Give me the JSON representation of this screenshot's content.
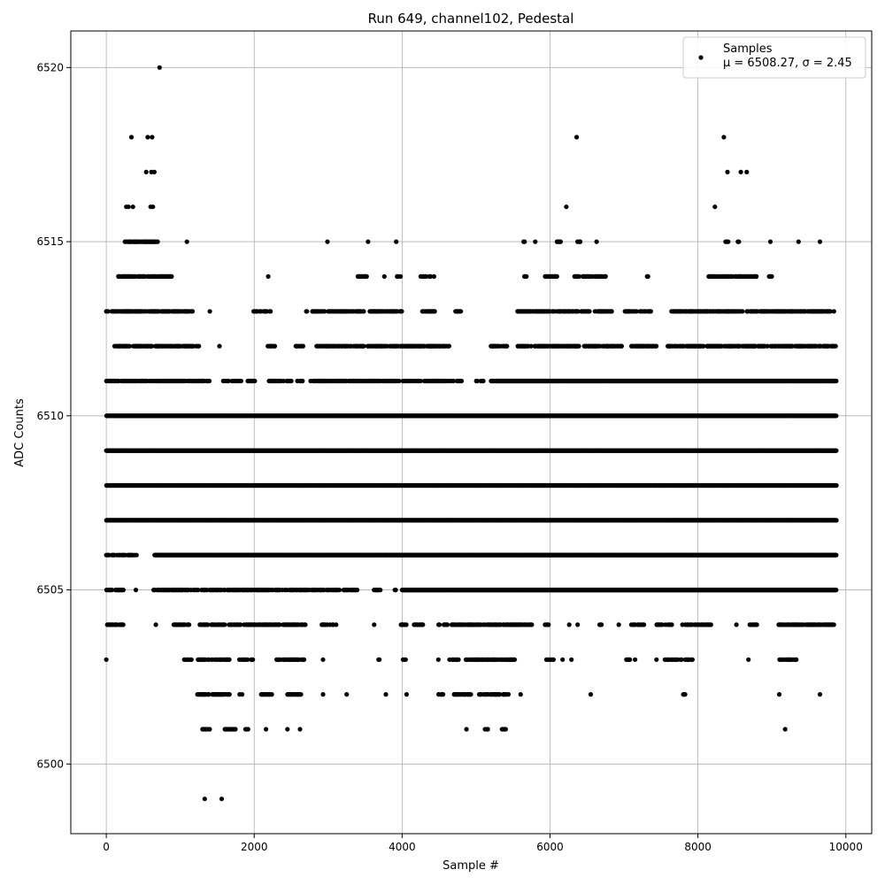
{
  "chart_data": {
    "type": "scatter",
    "title": "Run 649, channel102, Pedestal",
    "xlabel": "Sample #",
    "ylabel": "ADC Counts",
    "xlim": [
      -480,
      10350
    ],
    "ylim": [
      6498.0,
      6521.05
    ],
    "xticks": [
      0,
      2000,
      4000,
      6000,
      8000,
      10000
    ],
    "yticks": [
      6500,
      6505,
      6510,
      6515,
      6520
    ],
    "grid": true,
    "legend_position": "top-right",
    "legend": {
      "label": "Samples",
      "stats": "μ = 6508.27, σ = 2.45"
    },
    "marker_color": "#000000",
    "series": [
      {
        "name": "Samples",
        "n_samples": 9856,
        "mean": 6508.27,
        "sigma": 2.45,
        "outliers": [
          [
            720,
            6520
          ],
          [
            340,
            6518
          ],
          [
            560,
            6518
          ],
          [
            620,
            6518
          ],
          [
            6360,
            6518
          ],
          [
            8350,
            6518
          ],
          [
            540,
            6517
          ],
          [
            610,
            6517
          ],
          [
            650,
            6517
          ],
          [
            8400,
            6517
          ],
          [
            8580,
            6517
          ],
          [
            8660,
            6517
          ],
          [
            270,
            6516
          ],
          [
            300,
            6516
          ],
          [
            360,
            6516
          ],
          [
            600,
            6516
          ],
          [
            630,
            6516
          ],
          [
            6220,
            6516
          ],
          [
            8230,
            6516
          ],
          [
            1330,
            6499
          ],
          [
            1560,
            6499
          ],
          [
            5150,
            6501
          ],
          [
            1340,
            6501
          ],
          [
            9180,
            6501
          ],
          [
            4870,
            6501
          ]
        ],
        "level_ranges": [
          {
            "y": 6515,
            "x": [
              [
                250,
                700
              ],
              [
                1090,
                1090
              ],
              [
                2990,
                2990
              ],
              [
                3540,
                3540
              ],
              [
                3920,
                3920
              ],
              [
                5640,
                5660
              ],
              [
                5800,
                5800
              ],
              [
                6080,
                6140
              ],
              [
                6370,
                6410
              ],
              [
                6630,
                6630
              ],
              [
                8360,
                8420
              ],
              [
                8540,
                8560
              ],
              [
                8980,
                8980
              ],
              [
                9360,
                9360
              ],
              [
                9650,
                9650
              ]
            ]
          },
          {
            "y": 6514,
            "x": [
              [
                160,
                880
              ],
              [
                2190,
                2190
              ],
              [
                3400,
                3540
              ],
              [
                3760,
                3760
              ],
              [
                3930,
                3980
              ],
              [
                4250,
                4430
              ],
              [
                5640,
                5680
              ],
              [
                5910,
                6090
              ],
              [
                6330,
                6750
              ],
              [
                7310,
                7330
              ],
              [
                8130,
                8800
              ],
              [
                8960,
                9000
              ]
            ]
          },
          {
            "y": 6513,
            "x": [
              [
                0,
                1170
              ],
              [
                1400,
                1400
              ],
              [
                1990,
                2240
              ],
              [
                2700,
                3500
              ],
              [
                3560,
                4010
              ],
              [
                4260,
                4440
              ],
              [
                4720,
                4800
              ],
              [
                5560,
                6860
              ],
              [
                7000,
                7370
              ],
              [
                7640,
                9840
              ]
            ]
          },
          {
            "y": 6512,
            "x": [
              [
                110,
                1250
              ],
              [
                1530,
                1530
              ],
              [
                2170,
                2310
              ],
              [
                2560,
                2660
              ],
              [
                2830,
                3500
              ],
              [
                3530,
                4640
              ],
              [
                5200,
                5420
              ],
              [
                5550,
                7000
              ],
              [
                7100,
                7440
              ],
              [
                7580,
                9870
              ]
            ]
          },
          {
            "y": 6511,
            "x": [
              [
                0,
                1400
              ],
              [
                1580,
                1820
              ],
              [
                1910,
                2010
              ],
              [
                2200,
                2500
              ],
              [
                2580,
                2660
              ],
              [
                2760,
                4700
              ],
              [
                4740,
                4830
              ],
              [
                4990,
                5100
              ],
              [
                5200,
                9870
              ]
            ]
          },
          {
            "y": 6510,
            "x": [
              [
                0,
                9870
              ]
            ]
          },
          {
            "y": 6509,
            "x": [
              [
                0,
                9870
              ]
            ]
          },
          {
            "y": 6508,
            "x": [
              [
                0,
                9870
              ]
            ]
          },
          {
            "y": 6507,
            "x": [
              [
                0,
                9870
              ]
            ]
          },
          {
            "y": 6506,
            "x": [
              [
                0,
                430
              ],
              [
                650,
                9870
              ]
            ]
          },
          {
            "y": 6505,
            "x": [
              [
                0,
                230
              ],
              [
                400,
                400
              ],
              [
                640,
                3420
              ],
              [
                3620,
                3720
              ],
              [
                3900,
                3920
              ],
              [
                4000,
                9870
              ]
            ]
          },
          {
            "y": 6504,
            "x": [
              [
                0,
                230
              ],
              [
                670,
                670
              ],
              [
                900,
                1120
              ],
              [
                1250,
                2700
              ],
              [
                2900,
                3120
              ],
              [
                3620,
                3630
              ],
              [
                3970,
                4070
              ],
              [
                4160,
                4290
              ],
              [
                4490,
                5760
              ],
              [
                5930,
                5980
              ],
              [
                6260,
                6260
              ],
              [
                6360,
                6380
              ],
              [
                6670,
                6700
              ],
              [
                6930,
                6930
              ],
              [
                7100,
                7280
              ],
              [
                7440,
                7650
              ],
              [
                7790,
                8180
              ],
              [
                8520,
                8520
              ],
              [
                8700,
                8800
              ],
              [
                9090,
                9840
              ]
            ]
          },
          {
            "y": 6503,
            "x": [
              [
                0,
                0
              ],
              [
                1040,
                1150
              ],
              [
                1240,
                1670
              ],
              [
                1800,
                1990
              ],
              [
                2290,
                2700
              ],
              [
                2930,
                2930
              ],
              [
                3680,
                3700
              ],
              [
                4010,
                4050
              ],
              [
                4490,
                4490
              ],
              [
                4640,
                4760
              ],
              [
                4860,
                5530
              ],
              [
                5950,
                6050
              ],
              [
                6170,
                6170
              ],
              [
                6290,
                6290
              ],
              [
                7030,
                7080
              ],
              [
                7150,
                7150
              ],
              [
                7440,
                7440
              ],
              [
                7550,
                7930
              ],
              [
                8680,
                8700
              ],
              [
                9100,
                9330
              ]
            ]
          },
          {
            "y": 6502,
            "x": [
              [
                1220,
                1670
              ],
              [
                1800,
                1840
              ],
              [
                2080,
                2240
              ],
              [
                2450,
                2660
              ],
              [
                2930,
                2930
              ],
              [
                3250,
                3250
              ],
              [
                3780,
                3780
              ],
              [
                4060,
                4060
              ],
              [
                4490,
                4560
              ],
              [
                4700,
                4930
              ],
              [
                5040,
                5440
              ],
              [
                5600,
                5620
              ],
              [
                6550,
                6550
              ],
              [
                7800,
                7830
              ],
              [
                9100,
                9100
              ],
              [
                9650,
                9650
              ]
            ]
          },
          {
            "y": 6501,
            "x": [
              [
                1300,
                1400
              ],
              [
                1600,
                1750
              ],
              [
                1880,
                1920
              ],
              [
                2160,
                2160
              ],
              [
                2450,
                2450
              ],
              [
                2620,
                2620
              ],
              [
                5120,
                5170
              ],
              [
                5350,
                5420
              ]
            ]
          }
        ]
      }
    ]
  }
}
